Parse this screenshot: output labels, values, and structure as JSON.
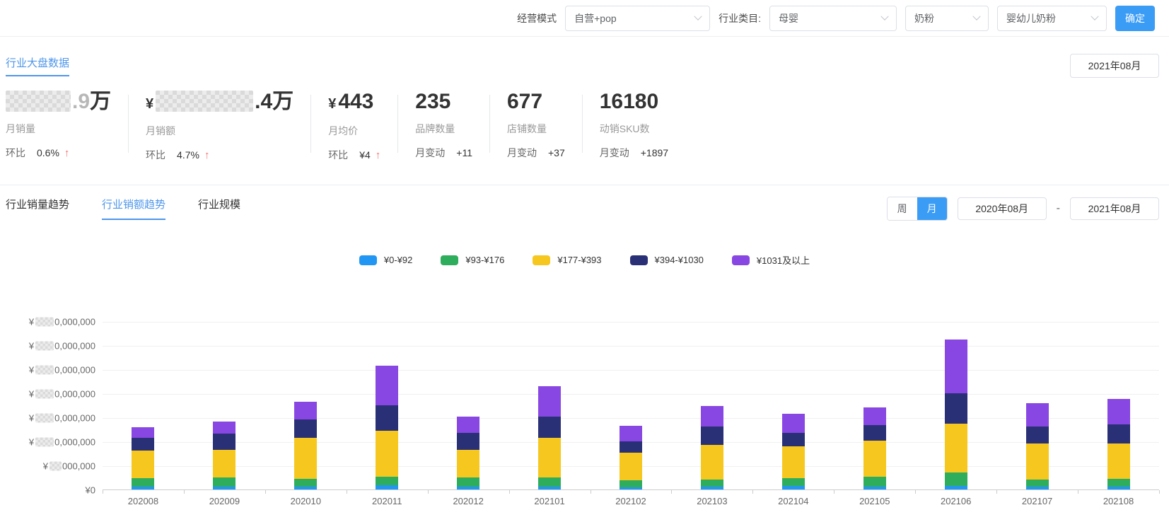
{
  "header": {
    "mode_label": "经营模式",
    "mode_value": "自营+pop",
    "category_label": "行业类目:",
    "category_value_1": "母婴",
    "category_value_2": "奶粉",
    "category_value_3": "婴幼儿奶粉",
    "confirm_button": "确定"
  },
  "overview": {
    "title": "行业大盘数据",
    "month_selector": "2021年08月",
    "stats": [
      {
        "censored": true,
        "value_faint": ".9",
        "value_suffix": "万",
        "label": "月销量",
        "sub_label": "环比",
        "sub_value": "0.6%",
        "trend": "up"
      },
      {
        "censored": true,
        "value_prefix": "¥",
        "value_suffix": ".4万",
        "label": "月销额",
        "sub_label": "环比",
        "sub_value": "4.7%",
        "trend": "up"
      },
      {
        "censored": false,
        "value_prefix": "¥",
        "value": "443",
        "label": "月均价",
        "sub_label": "环比",
        "sub_value": "¥4",
        "trend": "up"
      },
      {
        "censored": false,
        "value": "235",
        "label": "品牌数量",
        "sub_label": "月变动",
        "sub_value": "+11"
      },
      {
        "censored": false,
        "value": "677",
        "label": "店铺数量",
        "sub_label": "月变动",
        "sub_value": "+37"
      },
      {
        "censored": false,
        "value": "16180",
        "label": "动销SKU数",
        "sub_label": "月变动",
        "sub_value": "+1897"
      }
    ]
  },
  "trend": {
    "tabs": [
      {
        "label": "行业销量趋势",
        "active": false
      },
      {
        "label": "行业销额趋势",
        "active": true
      },
      {
        "label": "行业规模",
        "active": false
      }
    ],
    "toggle_week": "周",
    "toggle_month": "月",
    "date_from": "2020年08月",
    "date_sep": "-",
    "date_to": "2021年08月"
  },
  "chart_data": {
    "type": "bar",
    "stacked": true,
    "categories": [
      "202008",
      "202009",
      "202010",
      "202011",
      "202012",
      "202101",
      "202102",
      "202103",
      "202104",
      "202105",
      "202106",
      "202107",
      "202108"
    ],
    "series": [
      {
        "name": "¥0-¥92",
        "color": "#2196F3",
        "values_millions": [
          6,
          6,
          6,
          9,
          6,
          6,
          4,
          6,
          7,
          6,
          7,
          6,
          6
        ]
      },
      {
        "name": "¥93-¥176",
        "color": "#2EAE5C",
        "values_millions": [
          17,
          19,
          16,
          17,
          19,
          19,
          15,
          15,
          16,
          20,
          29,
          15,
          16
        ]
      },
      {
        "name": "¥177-¥393",
        "color": "#F6C71E",
        "values_millions": [
          58,
          58,
          86,
          96,
          57,
          83,
          57,
          71,
          67,
          76,
          101,
          74,
          74
        ]
      },
      {
        "name": "¥394-¥1030",
        "color": "#2A3076",
        "values_millions": [
          26,
          33,
          38,
          53,
          36,
          44,
          24,
          39,
          28,
          32,
          63,
          36,
          39
        ]
      },
      {
        "name": "¥1031及以上",
        "color": "#8847E2",
        "values_millions": [
          23,
          25,
          36,
          83,
          34,
          63,
          32,
          42,
          39,
          37,
          112,
          49,
          53
        ]
      }
    ],
    "legend_position": "top-center",
    "grid": true,
    "y_axis": {
      "currency_prefix": "¥",
      "zero_label": "¥0",
      "labels_censored": true,
      "gridline_step_millions": 50,
      "max_millions": 350,
      "labels_top_to_bottom": [
        {
          "suffix": "0,000,000"
        },
        {
          "suffix": "0,000,000"
        },
        {
          "suffix": "0,000,000"
        },
        {
          "suffix": "0,000,000"
        },
        {
          "suffix": "0,000,000"
        },
        {
          "suffix": "0,000,000"
        },
        {
          "suffix": "000,000"
        }
      ]
    }
  }
}
